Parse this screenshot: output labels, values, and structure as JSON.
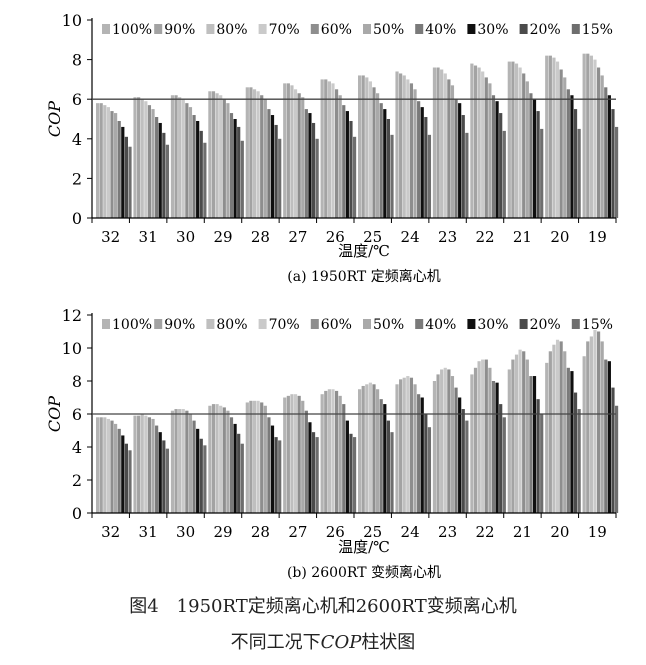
{
  "chart_data": [
    {
      "type": "bar",
      "categories": [
        "32",
        "31",
        "30",
        "29",
        "28",
        "27",
        "26",
        "25",
        "24",
        "23",
        "22",
        "21",
        "20",
        "19"
      ],
      "series": [
        {
          "name": "100%",
          "values": [
            5.8,
            6.1,
            6.2,
            6.4,
            6.6,
            6.8,
            7.0,
            7.2,
            7.4,
            7.6,
            7.8,
            7.9,
            8.2,
            8.3
          ]
        },
        {
          "name": "90%",
          "values": [
            5.8,
            6.1,
            6.2,
            6.4,
            6.6,
            6.8,
            7.0,
            7.2,
            7.3,
            7.6,
            7.7,
            7.9,
            8.2,
            8.3
          ]
        },
        {
          "name": "80%",
          "values": [
            5.7,
            6.0,
            6.1,
            6.3,
            6.5,
            6.7,
            6.9,
            7.1,
            7.2,
            7.5,
            7.6,
            7.8,
            8.1,
            8.2
          ]
        },
        {
          "name": "70%",
          "values": [
            5.6,
            5.9,
            6.0,
            6.2,
            6.4,
            6.5,
            6.8,
            6.9,
            7.0,
            7.3,
            7.4,
            7.6,
            7.9,
            8.0
          ]
        },
        {
          "name": "60%",
          "values": [
            5.4,
            5.7,
            5.8,
            6.0,
            6.2,
            6.3,
            6.5,
            6.6,
            6.8,
            7.0,
            7.1,
            7.3,
            7.5,
            7.6
          ]
        },
        {
          "name": "50%",
          "values": [
            5.3,
            5.5,
            5.6,
            5.8,
            6.0,
            6.1,
            6.2,
            6.3,
            6.5,
            6.7,
            6.8,
            6.9,
            7.1,
            7.2
          ]
        },
        {
          "name": "40%",
          "values": [
            4.9,
            5.1,
            5.2,
            5.3,
            5.5,
            5.5,
            5.7,
            5.8,
            5.9,
            6.0,
            6.2,
            6.3,
            6.5,
            6.6
          ]
        },
        {
          "name": "30%",
          "values": [
            4.6,
            4.8,
            4.9,
            5.0,
            5.2,
            5.3,
            5.4,
            5.5,
            5.6,
            5.8,
            5.9,
            6.0,
            6.2,
            6.2
          ]
        },
        {
          "name": "20%",
          "values": [
            4.1,
            4.3,
            4.4,
            4.6,
            4.7,
            4.8,
            4.9,
            5.0,
            5.1,
            5.2,
            5.3,
            5.4,
            5.5,
            5.5
          ]
        },
        {
          "name": "15%",
          "values": [
            3.6,
            3.7,
            3.8,
            3.9,
            4.0,
            4.0,
            4.1,
            4.2,
            4.2,
            4.3,
            4.4,
            4.5,
            4.5,
            4.6
          ]
        }
      ],
      "ylabel": "COP",
      "xlabel": "温度/℃",
      "subtitle": "(a) 1950RT 定频离心机",
      "ylim": [
        0,
        10
      ],
      "yticks": [
        0,
        2,
        4,
        6,
        8,
        10
      ],
      "reference_line": 6,
      "legend": "top",
      "grid": false
    },
    {
      "type": "bar",
      "categories": [
        "32",
        "31",
        "30",
        "29",
        "28",
        "27",
        "26",
        "25",
        "24",
        "23",
        "22",
        "21",
        "20",
        "19"
      ],
      "series": [
        {
          "name": "100%",
          "values": [
            5.8,
            5.9,
            6.2,
            6.5,
            6.7,
            7.0,
            7.2,
            7.5,
            7.8,
            8.0,
            8.4,
            8.7,
            9.1,
            9.5
          ]
        },
        {
          "name": "90%",
          "values": [
            5.8,
            5.9,
            6.3,
            6.6,
            6.8,
            7.1,
            7.4,
            7.7,
            8.1,
            8.4,
            8.8,
            9.3,
            9.8,
            10.4
          ]
        },
        {
          "name": "80%",
          "values": [
            5.8,
            6.0,
            6.3,
            6.6,
            6.8,
            7.2,
            7.5,
            7.8,
            8.2,
            8.7,
            9.2,
            9.6,
            10.2,
            10.7
          ]
        },
        {
          "name": "70%",
          "values": [
            5.7,
            5.9,
            6.3,
            6.5,
            6.8,
            7.2,
            7.5,
            7.9,
            8.3,
            8.8,
            9.3,
            9.9,
            10.5,
            11.1
          ]
        },
        {
          "name": "60%",
          "values": [
            5.6,
            5.8,
            6.2,
            6.4,
            6.7,
            7.1,
            7.4,
            7.8,
            8.2,
            8.7,
            9.3,
            9.8,
            10.4,
            11.0
          ]
        },
        {
          "name": "50%",
          "values": [
            5.4,
            5.7,
            6.0,
            6.2,
            6.5,
            6.8,
            7.1,
            7.5,
            7.8,
            8.3,
            8.8,
            9.3,
            9.8,
            10.4
          ]
        },
        {
          "name": "40%",
          "values": [
            5.1,
            5.3,
            5.6,
            5.8,
            5.8,
            6.2,
            6.6,
            6.9,
            7.2,
            7.6,
            8.0,
            8.3,
            8.8,
            9.3
          ]
        },
        {
          "name": "30%",
          "values": [
            4.7,
            4.9,
            5.1,
            5.4,
            5.3,
            5.5,
            5.6,
            6.6,
            7.0,
            7.0,
            7.9,
            8.3,
            8.6,
            9.2
          ]
        },
        {
          "name": "20%",
          "values": [
            4.2,
            4.4,
            4.5,
            4.8,
            4.6,
            4.9,
            4.8,
            5.6,
            6.0,
            6.3,
            6.6,
            6.9,
            7.3,
            7.6
          ]
        },
        {
          "name": "15%",
          "values": [
            3.8,
            3.9,
            4.1,
            4.2,
            4.4,
            4.6,
            4.6,
            4.9,
            5.2,
            5.6,
            5.8,
            6.0,
            6.3,
            6.5
          ]
        }
      ],
      "ylabel": "COP",
      "xlabel": "温度/℃",
      "subtitle": "(b) 2600RT 变频离心机",
      "ylim": [
        0,
        12
      ],
      "yticks": [
        0,
        2,
        4,
        6,
        8,
        10,
        12
      ],
      "reference_line": 6,
      "legend": "top",
      "grid": false
    }
  ],
  "colors": {
    "series": [
      "#b4b4b4",
      "#a3a3a3",
      "#bfbfbf",
      "#cacaca",
      "#8e8e8e",
      "#a9a9a9",
      "#7a7a7a",
      "#0f0f0f",
      "#4b4b4b",
      "#6e6e6e"
    ],
    "axis": "#000000",
    "reference": "#444444"
  },
  "caption": {
    "line1": "图4　1950RT定频离心机和2600RT变频离心机",
    "line2_prefix": "不同工况下",
    "line2_italic": "COP",
    "line2_suffix": "柱状图"
  }
}
